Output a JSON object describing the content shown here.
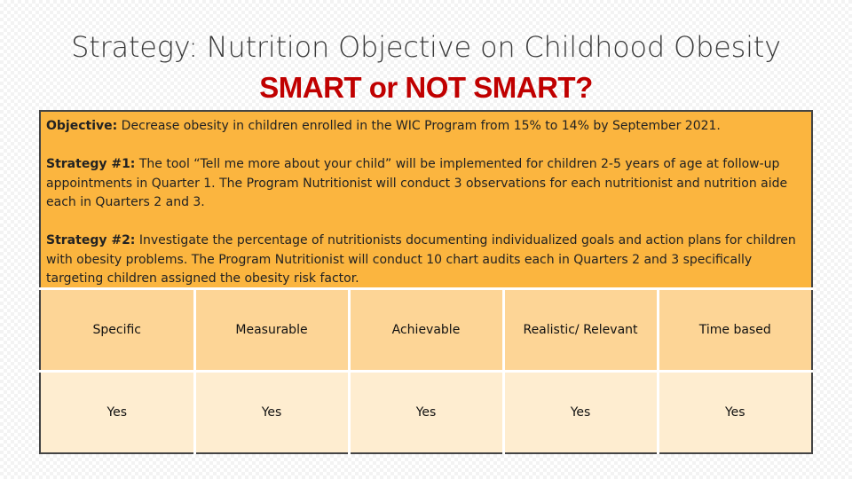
{
  "slide": {
    "title": "Strategy: Nutrition Objective on Childhood Obesity",
    "subtitle": "SMART or NOT SMART?"
  },
  "info": {
    "objective_label": "Objective:",
    "objective_text": " Decrease obesity in children enrolled in the WIC Program from 15% to 14% by September 2021.",
    "strategy1_label": "Strategy #1:",
    "strategy1_text": " The tool “Tell me more about your child” will be implemented for children 2-5 years of age at follow-up appointments in Quarter 1. The Program Nutritionist will conduct 3 observations for each nutritionist and nutrition aide each in Quarters 2 and 3.",
    "strategy2_label": "Strategy #2:",
    "strategy2_text": " Investigate the percentage of nutritionists documenting individualized goals and action plans for children with obesity problems. The Program Nutritionist will conduct 10 chart audits each in Quarters 2 and 3 specifically targeting children assigned the obesity risk factor."
  },
  "table": {
    "headers": [
      "Specific",
      "Measurable",
      "Achievable",
      "Realistic/ Relevant",
      "Time based"
    ],
    "values": [
      "Yes",
      "Yes",
      "Yes",
      "Yes",
      "Yes"
    ]
  },
  "colors": {
    "title": "#3a3a3a",
    "subtitle": "#c00000",
    "info_background": "#fbb53f",
    "header_row": "#fdd596",
    "value_row": "#feedd0"
  }
}
